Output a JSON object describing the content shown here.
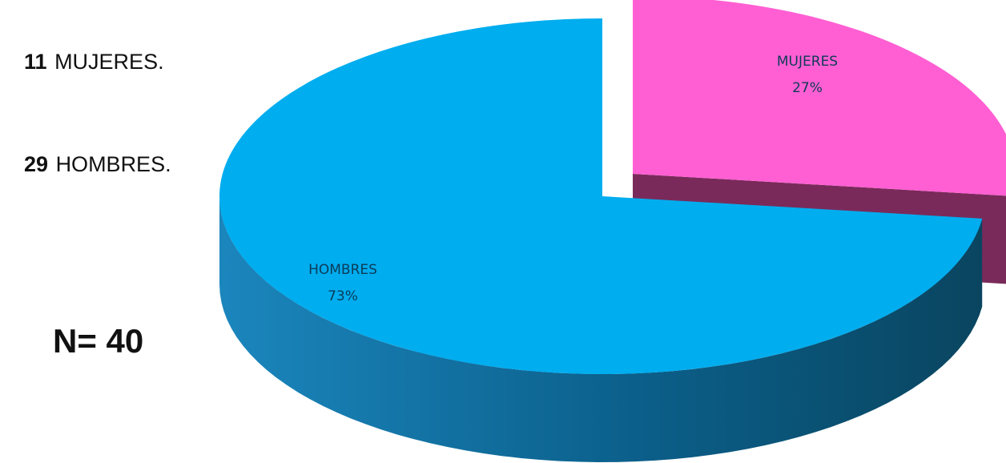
{
  "summary": {
    "items": [
      {
        "count": "11",
        "label": "MUJERES."
      },
      {
        "count": "29",
        "label": "HOMBRES."
      }
    ],
    "n_prefix": "N=",
    "n_value": "40"
  },
  "colors": {
    "hombres_top": "#00adef",
    "hombres_side": "#0a6a98",
    "mujeres_top": "#ff5fd3",
    "mujeres_side": "#7a2a5a"
  },
  "chart_data": {
    "type": "pie",
    "style": "3d-exploded",
    "title": "",
    "slices": [
      {
        "label": "HOMBRES",
        "value": 73,
        "value_label": "73%"
      },
      {
        "label": "MUJERES",
        "value": 27,
        "value_label": "27%",
        "exploded": true
      }
    ]
  }
}
